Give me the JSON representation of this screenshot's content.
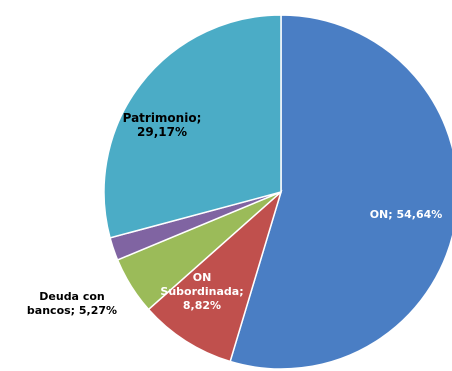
{
  "chart_data": {
    "type": "pie",
    "title": "",
    "slices": [
      {
        "label_lines": [
          "ON; 54,64%"
        ],
        "value": 54.64,
        "color": "#4A7EC4",
        "label_color": "#ffffff"
      },
      {
        "label_lines": [
          "ON",
          "Subordinada;",
          "8,82%"
        ],
        "value": 8.82,
        "color": "#C0504D",
        "label_color": "#ffffff"
      },
      {
        "label_lines": [
          "Deuda con",
          "bancos; 5,27%"
        ],
        "value": 5.27,
        "color": "#9BBB59",
        "label_color": "#000000"
      },
      {
        "label_lines": [],
        "value": 2.1,
        "color": "#8064A2",
        "label_color": "#000000"
      },
      {
        "label_lines": [
          "Patrimonio;",
          "29,17%"
        ],
        "value": 29.17,
        "color": "#4BACC6",
        "label_color": "#000000"
      }
    ]
  }
}
